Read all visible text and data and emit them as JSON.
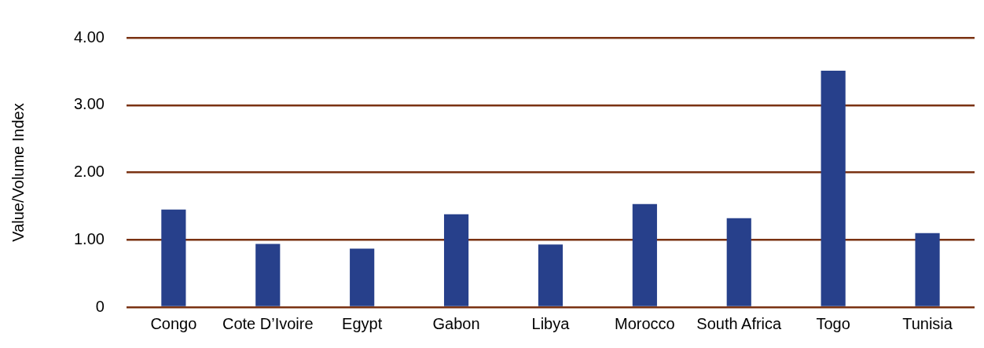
{
  "chart_data": {
    "type": "bar",
    "ylabel": "Value/Volume Index",
    "categories": [
      "Congo",
      "Cote D’Ivoire",
      "Egypt",
      "Gabon",
      "Libya",
      "Morocco",
      "South Africa",
      "Togo",
      "Tunisia"
    ],
    "values": [
      1.45,
      0.94,
      0.87,
      1.38,
      0.93,
      1.53,
      1.32,
      3.51,
      1.1
    ],
    "color": "#27408b",
    "ylim": [
      0,
      4
    ],
    "yticks": [
      {
        "value": 0,
        "label": "0"
      },
      {
        "value": 1,
        "label": "1.00"
      },
      {
        "value": 2,
        "label": "2.00"
      },
      {
        "value": 3,
        "label": "3.00"
      },
      {
        "value": 4,
        "label": "4.00"
      }
    ],
    "grid": "y"
  }
}
